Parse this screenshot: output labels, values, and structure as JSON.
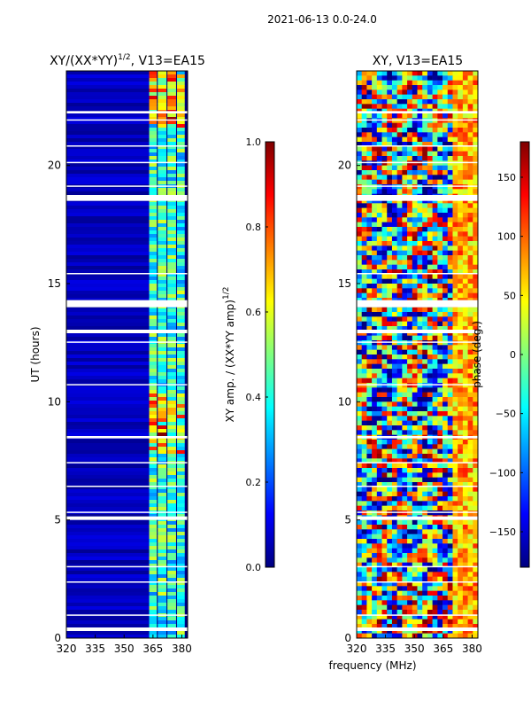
{
  "suptitle": "2021-06-13 0.0-24.0",
  "colors": {
    "jet": [
      "#00007f",
      "#0000ff",
      "#007fff",
      "#00ffff",
      "#7fff7f",
      "#ffff00",
      "#ff7f00",
      "#ff0000",
      "#7f0000"
    ],
    "axis": "#000000",
    "flag": "#ffffff"
  },
  "chart_data": [
    {
      "type": "heatmap",
      "title": "XY/(XX*YY)",
      "title_exponent": "1/2",
      "title_suffix": ", V13=EA15",
      "xlabel": "",
      "ylabel": "UT (hours)",
      "xlim": [
        320,
        383
      ],
      "ylim": [
        0,
        24
      ],
      "xticks": [
        320,
        335,
        350,
        365,
        380
      ],
      "yticks": [
        0,
        5,
        10,
        15,
        20
      ],
      "colorbar": {
        "label": "XY amp. / (XX*YY amp)",
        "label_exponent": "1/2",
        "range": [
          0.0,
          1.0
        ],
        "ticks": [
          "0.0",
          "0.2",
          "0.4",
          "0.6",
          "0.8",
          "1.0"
        ],
        "tick_values": [
          0.0,
          0.2,
          0.4,
          0.6,
          0.8,
          1.0
        ],
        "cmap": "jet"
      },
      "flagged_ut_bands": [
        [
          0.3,
          0.45
        ],
        [
          0.95,
          1.0
        ],
        [
          2.35,
          2.4
        ],
        [
          3.0,
          3.05
        ],
        [
          5.0,
          5.15
        ],
        [
          5.3,
          5.35
        ],
        [
          6.4,
          6.45
        ],
        [
          7.4,
          7.45
        ],
        [
          8.45,
          8.55
        ],
        [
          10.7,
          10.75
        ],
        [
          12.5,
          12.55
        ],
        [
          12.9,
          13.05
        ],
        [
          14.0,
          14.3
        ],
        [
          15.4,
          15.45
        ],
        [
          18.5,
          18.75
        ],
        [
          19.1,
          19.15
        ],
        [
          20.1,
          20.15
        ],
        [
          20.8,
          20.85
        ],
        [
          21.9,
          21.95
        ],
        [
          22.2,
          22.3
        ]
      ],
      "channel_groups_mhz": [
        [
          363,
          367
        ],
        [
          367.5,
          372
        ],
        [
          372.5,
          377
        ],
        [
          377.5,
          381.5
        ]
      ]
    },
    {
      "type": "heatmap",
      "title": "XY, V13=EA15",
      "xlabel": "frequency (MHz)",
      "ylabel": "",
      "xlim": [
        320,
        383
      ],
      "ylim": [
        0,
        24
      ],
      "xticks": [
        320,
        335,
        350,
        365,
        380
      ],
      "yticks": [
        0,
        5,
        10,
        15,
        20
      ],
      "colorbar": {
        "label": "phase (deg.)",
        "range": [
          -180,
          180
        ],
        "ticks": [
          "−150",
          "−100",
          "−50",
          "0",
          "50",
          "100",
          "150"
        ],
        "tick_values": [
          -150,
          -100,
          -50,
          0,
          50,
          100,
          150
        ],
        "cmap": "jet"
      },
      "flagged_ut_bands": [
        [
          0.3,
          0.45
        ],
        [
          0.95,
          1.0
        ],
        [
          2.35,
          2.4
        ],
        [
          3.0,
          3.05
        ],
        [
          5.0,
          5.15
        ],
        [
          5.3,
          5.35
        ],
        [
          6.4,
          6.45
        ],
        [
          7.4,
          7.45
        ],
        [
          8.45,
          8.55
        ],
        [
          10.7,
          10.75
        ],
        [
          12.5,
          12.55
        ],
        [
          12.9,
          13.05
        ],
        [
          14.0,
          14.3
        ],
        [
          15.4,
          15.45
        ],
        [
          18.5,
          18.75
        ],
        [
          19.1,
          19.15
        ],
        [
          20.1,
          20.15
        ],
        [
          20.8,
          20.85
        ],
        [
          21.9,
          21.95
        ],
        [
          22.2,
          22.3
        ]
      ]
    }
  ]
}
